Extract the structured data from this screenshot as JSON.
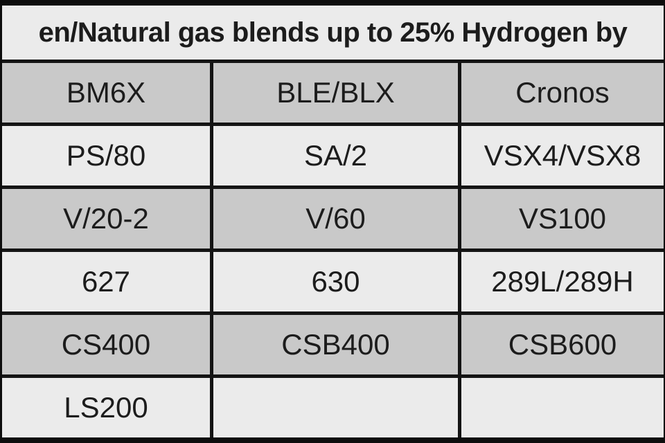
{
  "title": {
    "text": "en/Natural gas blends up to 25% Hydrogen by"
  },
  "table": {
    "header": [
      "BM6X",
      "BLE/BLX",
      "Cronos"
    ],
    "rows": [
      [
        "PS/80",
        "SA/2",
        "VSX4/VSX8"
      ],
      [
        "V/20-2",
        "V/60",
        "VS100"
      ],
      [
        "627",
        "630",
        "289L/289H"
      ],
      [
        "CS400",
        "CSB400",
        "CSB600"
      ],
      [
        "LS200",
        "",
        ""
      ]
    ]
  },
  "colors": {
    "letterbox": "#0d0d0d",
    "grid_line": "#141414",
    "row_light": "#ebebeb",
    "row_gray": "#c9c9c9",
    "text": "#1c1c1c"
  }
}
